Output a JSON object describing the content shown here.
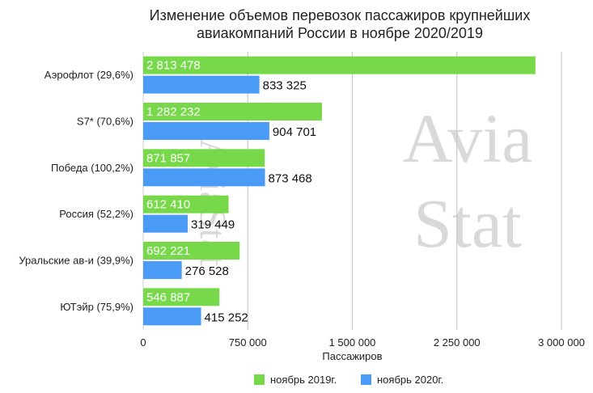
{
  "chart_data": {
    "type": "bar",
    "orientation": "horizontal",
    "title_lines": [
      "Изменение объемов перевозок пассажиров крупнейших",
      "авиакомпаний России в ноябре 2020/2019"
    ],
    "categories": [
      "Аэрофлот (29,6%)",
      "S7* (70,6%)",
      "Победа (100,2%)",
      "Россия (52,2%)",
      "Уральские ав-и (39,9%)",
      "ЮТэйр (75,9%)"
    ],
    "series": [
      {
        "name": "ноябрь 2019г.",
        "color": "#77d94a",
        "values": [
          2813478,
          1282232,
          871857,
          612410,
          692221,
          546887
        ],
        "labels": [
          "2 813 478",
          "1 282 232",
          "871 857",
          "612 410",
          "692 221",
          "546 887"
        ]
      },
      {
        "name": "ноябрь 2020г.",
        "color": "#4a9bf5",
        "values": [
          833325,
          904701,
          873468,
          319449,
          276528,
          415252
        ],
        "labels": [
          "833 325",
          "904 701",
          "873 468",
          "319 449",
          "276 528",
          "415 252"
        ]
      }
    ],
    "xlabel": "Пассажиров",
    "xlim": [
      0,
      3000000
    ],
    "ticks": [
      0,
      750000,
      1500000,
      2250000,
      3000000
    ],
    "tick_labels": [
      "0",
      "750 000",
      "1 500 000",
      "2 250 000",
      "3 000 000"
    ],
    "grid": true,
    "legend_position": "bottom",
    "watermark": [
      "Avia",
      "Stat"
    ]
  }
}
